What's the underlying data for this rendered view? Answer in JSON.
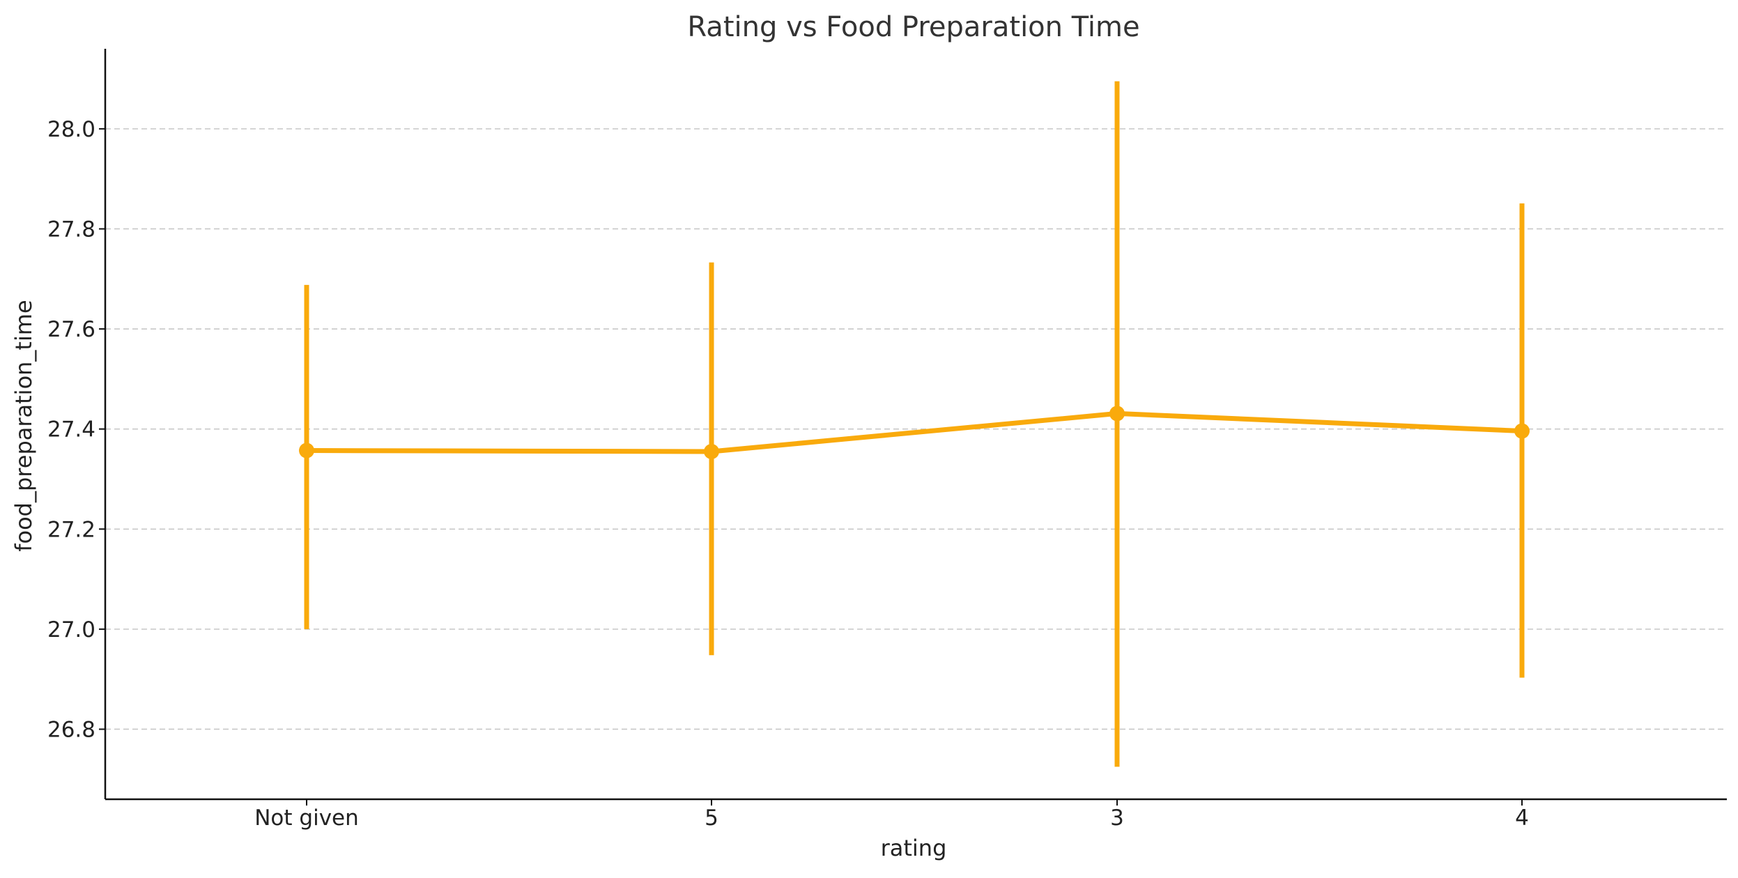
{
  "chart_data": {
    "type": "line",
    "title": "Rating vs Food Preparation Time",
    "xlabel": "rating",
    "ylabel": "food_preparation_time",
    "categories": [
      "Not given",
      "5",
      "3",
      "4"
    ],
    "series": [
      {
        "values": [
          27.357,
          27.355,
          27.431,
          27.396
        ],
        "error_low": [
          27.0,
          26.948,
          26.725,
          26.903
        ],
        "error_high": [
          27.688,
          27.733,
          28.095,
          27.851
        ]
      }
    ],
    "ylim": [
      26.66,
      28.16
    ],
    "yticks": [
      26.8,
      27.0,
      27.2,
      27.4,
      27.6,
      27.8,
      28.0
    ],
    "ytick_labels": [
      "26.8",
      "27.0",
      "27.2",
      "27.4",
      "27.6",
      "27.8",
      "28.0"
    ],
    "grid": "horizontal dashed",
    "color": "#f9aa0c"
  }
}
